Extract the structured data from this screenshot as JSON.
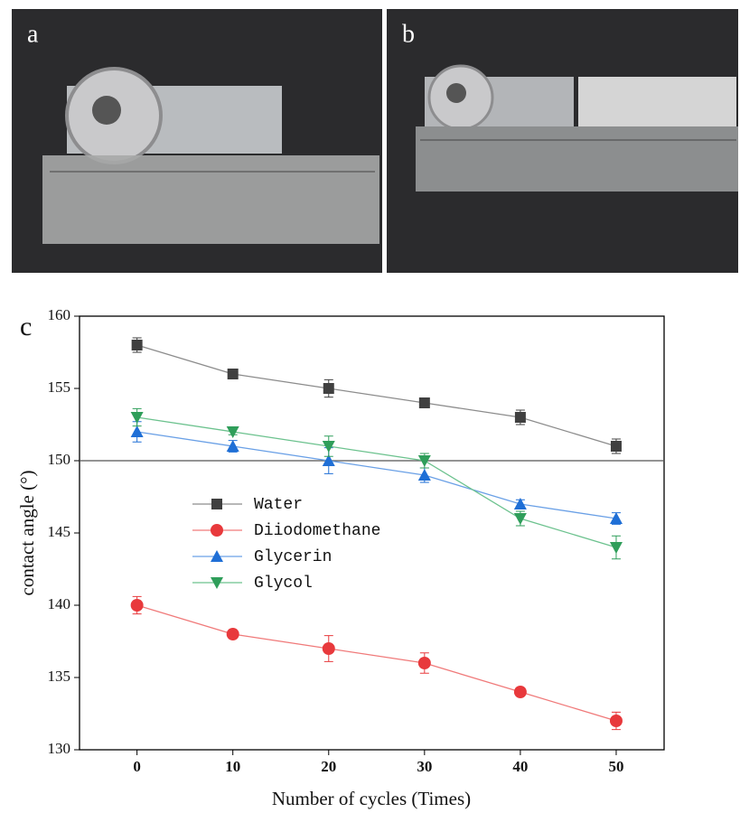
{
  "panel_labels": [
    "a",
    "b"
  ],
  "chart_data": {
    "type": "line",
    "panel_label": "c",
    "x_label": "Number of cycles (Times)",
    "y_label": "contact angle (°)",
    "x": [
      0,
      10,
      20,
      30,
      40,
      50
    ],
    "xlim": [
      -6,
      55
    ],
    "xticks": [
      0,
      10,
      20,
      30,
      40,
      50
    ],
    "ylim": [
      130,
      160
    ],
    "yticks": [
      130,
      135,
      140,
      145,
      150,
      155,
      160
    ],
    "hline": 150,
    "legend_position": "center-left",
    "series": [
      {
        "name": "Water",
        "color": "#404040",
        "line_color": "#8c8c8c",
        "marker": "square",
        "values": [
          158,
          156,
          155,
          154,
          153,
          151
        ],
        "errors": [
          0.5,
          0.3,
          0.6,
          0.2,
          0.5,
          0.5
        ]
      },
      {
        "name": "Diiodomethane",
        "color": "#e8393c",
        "line_color": "#f07a7a",
        "marker": "circle",
        "values": [
          140,
          138,
          137,
          136,
          134,
          132
        ],
        "errors": [
          0.6,
          0.2,
          0.9,
          0.7,
          0.2,
          0.6
        ]
      },
      {
        "name": "Glycerin",
        "color": "#1f6fd6",
        "line_color": "#6aa0e6",
        "marker": "triangle-up",
        "values": [
          152,
          151,
          150,
          149,
          147,
          146
        ],
        "errors": [
          0.7,
          0.4,
          0.9,
          0.5,
          0.3,
          0.4
        ]
      },
      {
        "name": "Glycol",
        "color": "#2f9e5a",
        "line_color": "#6cc28e",
        "marker": "triangle-down",
        "values": [
          153,
          152,
          151,
          150,
          146,
          144
        ],
        "errors": [
          0.6,
          0.2,
          0.7,
          0.5,
          0.5,
          0.8
        ]
      }
    ]
  }
}
